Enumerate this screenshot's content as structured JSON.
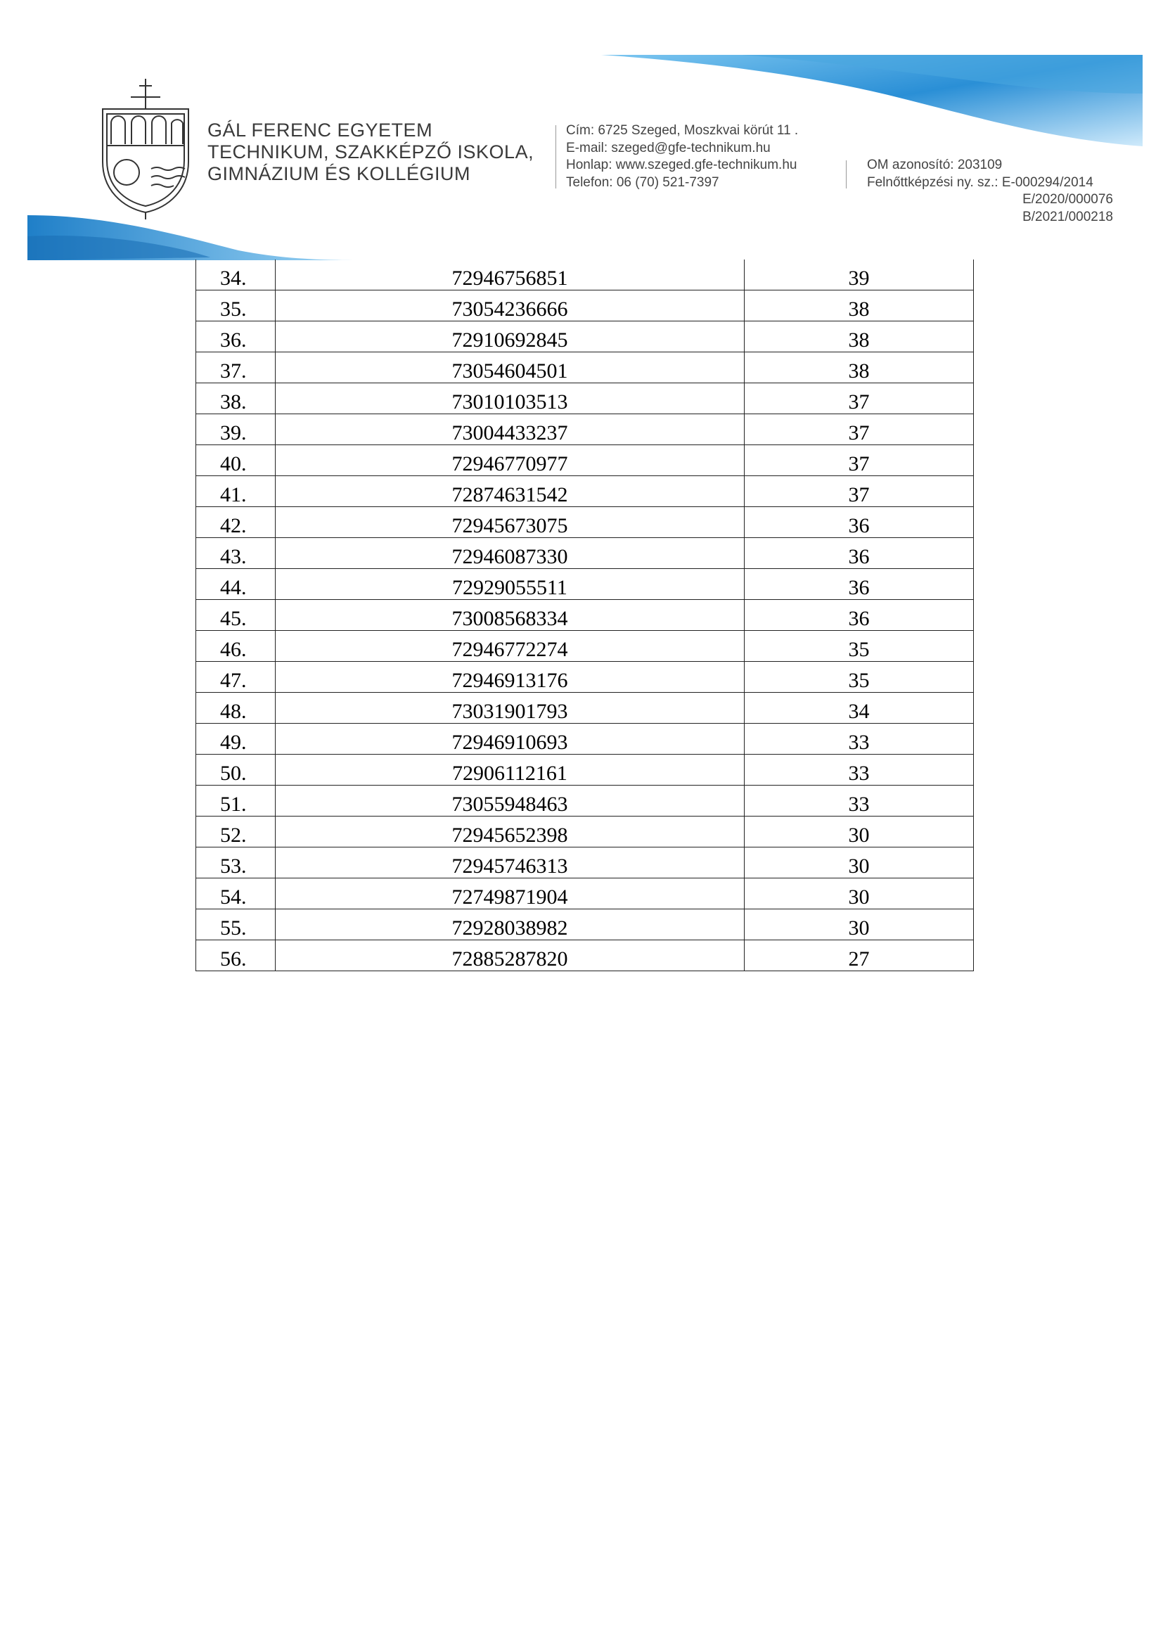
{
  "header": {
    "school_name_lines": [
      "GÁL FERENC EGYETEM",
      "TECHNIKUM, SZAKKÉPZŐ ISKOLA,",
      "GIMNÁZIUM ÉS KOLLÉGIUM"
    ],
    "contact_lines": [
      "Cím: 6725 Szeged, Moszkvai körút 11 .",
      "E-mail: szeged@gfe-technikum.hu",
      "Honlap: www.szeged.gfe-technikum.hu",
      "Telefon: 06 (70) 521-7397"
    ],
    "registration_lines": [
      "OM azonosító: 203109",
      "Felnőttképzési ny. sz.: E-000294/2014",
      "E/2020/000076",
      "B/2021/000218"
    ],
    "accent_color": "#2a8fd6"
  },
  "table": {
    "rows": [
      [
        "34.",
        "72946756851",
        "39"
      ],
      [
        "35.",
        "73054236666",
        "38"
      ],
      [
        "36.",
        "72910692845",
        "38"
      ],
      [
        "37.",
        "73054604501",
        "38"
      ],
      [
        "38.",
        "73010103513",
        "37"
      ],
      [
        "39.",
        "73004433237",
        "37"
      ],
      [
        "40.",
        "72946770977",
        "37"
      ],
      [
        "41.",
        "72874631542",
        "37"
      ],
      [
        "42.",
        "72945673075",
        "36"
      ],
      [
        "43.",
        "72946087330",
        "36"
      ],
      [
        "44.",
        "72929055511",
        "36"
      ],
      [
        "45.",
        "73008568334",
        "36"
      ],
      [
        "46.",
        "72946772274",
        "35"
      ],
      [
        "47.",
        "72946913176",
        "35"
      ],
      [
        "48.",
        "73031901793",
        "34"
      ],
      [
        "49.",
        "72946910693",
        "33"
      ],
      [
        "50.",
        "72906112161",
        "33"
      ],
      [
        "51.",
        "73055948463",
        "33"
      ],
      [
        "52.",
        "72945652398",
        "30"
      ],
      [
        "53.",
        "72945746313",
        "30"
      ],
      [
        "54.",
        "72749871904",
        "30"
      ],
      [
        "55.",
        "72928038982",
        "30"
      ],
      [
        "56.",
        "72885287820",
        "27"
      ]
    ]
  }
}
